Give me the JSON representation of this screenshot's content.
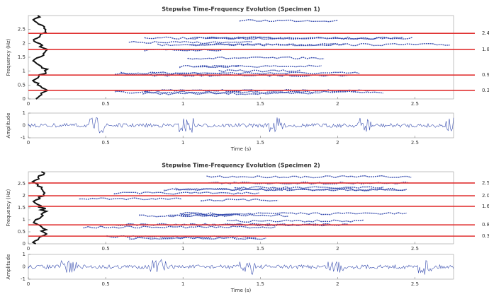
{
  "chart_data": [
    {
      "type": "ridges",
      "title": "Stepwise Time-Frequency Evolution (Specimen 1)",
      "ylabel": "Frequency (Hz)",
      "xlim": [
        0,
        2.75
      ],
      "xticks": [
        0,
        0.5,
        1,
        1.5,
        2,
        2.5
      ],
      "ylim": [
        0,
        3
      ],
      "yticks": [
        0,
        0.5,
        1,
        1.5,
        2,
        2.5
      ],
      "color": "#e03030",
      "values": [
        2.36,
        1.78,
        0.86,
        0.31
      ],
      "value_labels": [
        "2.4",
        "1.8",
        "0.9",
        "0.3"
      ]
    },
    {
      "type": "signal",
      "ylabel": "Amplitude",
      "xlabel": "Time (s)",
      "xlim": [
        0,
        2.75
      ],
      "xticks": [
        0,
        0.5,
        1,
        1.5,
        2,
        2.5
      ],
      "ylim": [
        -1,
        1
      ],
      "yticks": [
        -1,
        0,
        1
      ]
    },
    {
      "type": "ridges",
      "title": "Stepwise Time-Frequency Evolution (Specimen 2)",
      "ylabel": "Frequency (Hz)",
      "xlim": [
        0,
        2.75
      ],
      "xticks": [
        0,
        0.5,
        1,
        1.5,
        2,
        2.5
      ],
      "ylim": [
        0,
        3
      ],
      "yticks": [
        0,
        0.5,
        1,
        1.5,
        2,
        2.5
      ],
      "color": "#e03030",
      "values": [
        2.53,
        2.0,
        1.56,
        0.79,
        0.32
      ],
      "value_labels": [
        "2.5",
        "2.0",
        "1.6",
        "0.8",
        "0.3"
      ]
    },
    {
      "type": "signal",
      "ylabel": "Amplitude",
      "xlabel": "Time (s)",
      "xlim": [
        0,
        2.75
      ],
      "xticks": [
        0,
        0.5,
        1,
        1.5,
        2,
        2.5
      ],
      "ylim": [
        -1,
        1
      ],
      "yticks": [
        -1,
        0,
        1
      ]
    }
  ]
}
